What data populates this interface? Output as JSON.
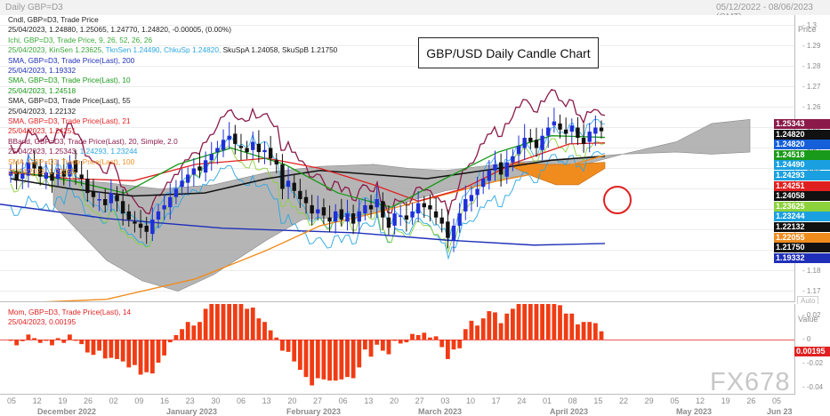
{
  "header": {
    "title": "Daily GBP=D3",
    "range": "05/12/2022 - 08/06/2023 (GMT)"
  },
  "chart_title": "GBP/USD Daily Candle Chart",
  "legend": [
    {
      "text": "Cndl, GBP=D3, Trade Price",
      "color": "#222222"
    },
    {
      "text": "25/04/2023, 1.24880, 1.25065, 1.24770, 1.24820, -0.00005, (0.00%)",
      "color": "#222222"
    },
    {
      "text": "Ichi, GBP=D3, Trade Price,  9, 26, 52, 26, 26",
      "color": "#3aa83a"
    },
    {
      "text": "25/04/2023, KinSen 1.23625, TknSen 1.24490, ChkuSp 1.24820, SkuSpA 1.24058, SkuSpB 1.21750",
      "parts": [
        {
          "t": "25/04/2023, KinSen 1.23625, ",
          "c": "#3aa83a"
        },
        {
          "t": "TknSen 1.24490, ChkuSp 1.24820, ",
          "c": "#2aa7e0"
        },
        {
          "t": "SkuSpA 1.24058, SkuSpB 1.21750",
          "c": "#222222"
        }
      ]
    },
    {
      "text": "SMA, GBP=D3, Trade Price(Last),  200",
      "color": "#1f2fb8"
    },
    {
      "text": "25/04/2023, 1.19332",
      "color": "#1f2fb8"
    },
    {
      "text": "SMA, GBP=D3, Trade Price(Last),  10",
      "color": "#1a9a1a"
    },
    {
      "text": "25/04/2023, 1.24518",
      "color": "#1a9a1a"
    },
    {
      "text": "SMA, GBP=D3, Trade Price(Last),  55",
      "color": "#222222"
    },
    {
      "text": "25/04/2023, 1.22132",
      "color": "#222222"
    },
    {
      "text": "SMA, GBP=D3, Trade Price(Last),  21",
      "color": "#e02020"
    },
    {
      "text": "25/04/2023, 1.24251",
      "color": "#e02020"
    },
    {
      "text": "BBand, GBP=D3, Trade Price(Last),  20, Simple, 2.0",
      "color": "#8a1a4a"
    },
    {
      "text": "25/04/2023, 1.25343, 1.24293, 1.23244",
      "parts": [
        {
          "t": "25/04/2023, 1.25343, ",
          "c": "#8a1a4a"
        },
        {
          "t": "1.24293, 1.23244",
          "c": "#2aa7e0"
        }
      ]
    },
    {
      "text": "SMA, GBP=D3, Trade Price(Last),  100",
      "color": "#f08c1e"
    },
    {
      "text": "25/04/2023, 1.22055",
      "color": "#f08c1e"
    }
  ],
  "price_axis": {
    "title": "Price",
    "ticks": [
      "1.3",
      "1.29",
      "1.28",
      "1.27",
      "1.26",
      "1.25",
      "1.24",
      "1.23",
      "1.22",
      "1.21",
      "1.2",
      "1.19",
      "1.18",
      "1.17"
    ]
  },
  "badges": [
    {
      "v": "1.25343",
      "bg": "#8a1a4a",
      "fg": "#ffffff"
    },
    {
      "v": "1.24820",
      "bg": "#111111",
      "fg": "#ffffff"
    },
    {
      "v": "1.24820",
      "bg": "#1560d8",
      "fg": "#ffffff"
    },
    {
      "v": "1.24518",
      "bg": "#1a9a1a",
      "fg": "#ffffff"
    },
    {
      "v": "1.24490",
      "bg": "#1aa0e0",
      "fg": "#ffffff"
    },
    {
      "v": "1.24293",
      "bg": "#1aa0e0",
      "fg": "#ffffff"
    },
    {
      "v": "1.24251",
      "bg": "#e02020",
      "fg": "#ffffff"
    },
    {
      "v": "1.24058",
      "bg": "#111111",
      "fg": "#ffffff"
    },
    {
      "v": "1.23625",
      "bg": "#8cd23c",
      "fg": "#ffffff"
    },
    {
      "v": "1.23244",
      "bg": "#1aa0e0",
      "fg": "#ffffff"
    },
    {
      "v": "1.22132",
      "bg": "#111111",
      "fg": "#ffffff"
    },
    {
      "v": "1.22055",
      "bg": "#f08c1e",
      "fg": "#ffffff"
    },
    {
      "v": "1.21750",
      "bg": "#111111",
      "fg": "#ffffff"
    },
    {
      "v": "1.19332",
      "bg": "#1f2fb8",
      "fg": "#ffffff"
    }
  ],
  "auto_label": "Auto",
  "momentum": {
    "legend_line1": "Mom, GBP=D3, Trade Price(Last),  14",
    "legend_line2": "25/04/2023, 0.00195",
    "axis_title": "Value",
    "ticks": [
      "0.02",
      "0",
      "-0.02",
      "-0.04"
    ],
    "badge": "0.00195"
  },
  "x_axis": {
    "days": [
      "05",
      "12",
      "19",
      "26",
      "02",
      "09",
      "16",
      "23",
      "30",
      "06",
      "13",
      "20",
      "27",
      "06",
      "13",
      "20",
      "27",
      "03",
      "10",
      "17",
      "24",
      "01",
      "08",
      "15",
      "22",
      "29",
      "05",
      "12",
      "19",
      "26",
      "05"
    ],
    "months": [
      "December 2022",
      "January 2023",
      "February 2023",
      "March 2023",
      "April 2023",
      "May 2023",
      "Jun 23"
    ]
  },
  "watermark": "FX678",
  "chart_data": {
    "type": "candlestick",
    "title": "GBP/USD Daily Candle Chart",
    "ylim": [
      1.165,
      1.305
    ],
    "candles_close": [
      1.2285,
      1.224,
      1.2275,
      1.233,
      1.23,
      1.226,
      1.228,
      1.224,
      1.23,
      1.226,
      1.233,
      1.228,
      1.225,
      1.218,
      1.216,
      1.215,
      1.212,
      1.218,
      1.214,
      1.208,
      1.205,
      1.203,
      1.201,
      1.199,
      1.205,
      1.209,
      1.212,
      1.216,
      1.22,
      1.224,
      1.227,
      1.23,
      1.229,
      1.234,
      1.237,
      1.24,
      1.244,
      1.246,
      1.242,
      1.24,
      1.238,
      1.243,
      1.238,
      1.239,
      1.235,
      1.232,
      1.22,
      1.224,
      1.219,
      1.215,
      1.213,
      1.208,
      1.21,
      1.207,
      1.204,
      1.209,
      1.205,
      1.208,
      1.203,
      1.209,
      1.212,
      1.21,
      1.215,
      1.206,
      1.201,
      1.208,
      1.207,
      1.205,
      1.209,
      1.213,
      1.211,
      1.21,
      1.206,
      1.203,
      1.196,
      1.202,
      1.208,
      1.215,
      1.217,
      1.22,
      1.225,
      1.229,
      1.232,
      1.227,
      1.233,
      1.236,
      1.241,
      1.245,
      1.243,
      1.24,
      1.246,
      1.25,
      1.253,
      1.249,
      1.247,
      1.251,
      1.245,
      1.242,
      1.248,
      1.25,
      1.2482
    ],
    "series": [
      {
        "name": "SMA 200",
        "values": [
          1.212,
          1.2055,
          1.1998,
          1.196,
          1.1935
        ]
      },
      {
        "name": "SMA 55",
        "values": [
          1.212,
          1.2185,
          1.216,
          1.21,
          1.2213
        ]
      },
      {
        "name": "SMA 100",
        "values": [
          1.162,
          1.17,
          1.185,
          1.204,
          1.2206
        ]
      }
    ],
    "momentum": {
      "name": "Mom 14",
      "last": 0.00195,
      "ylim": [
        -0.045,
        0.03
      ]
    }
  }
}
